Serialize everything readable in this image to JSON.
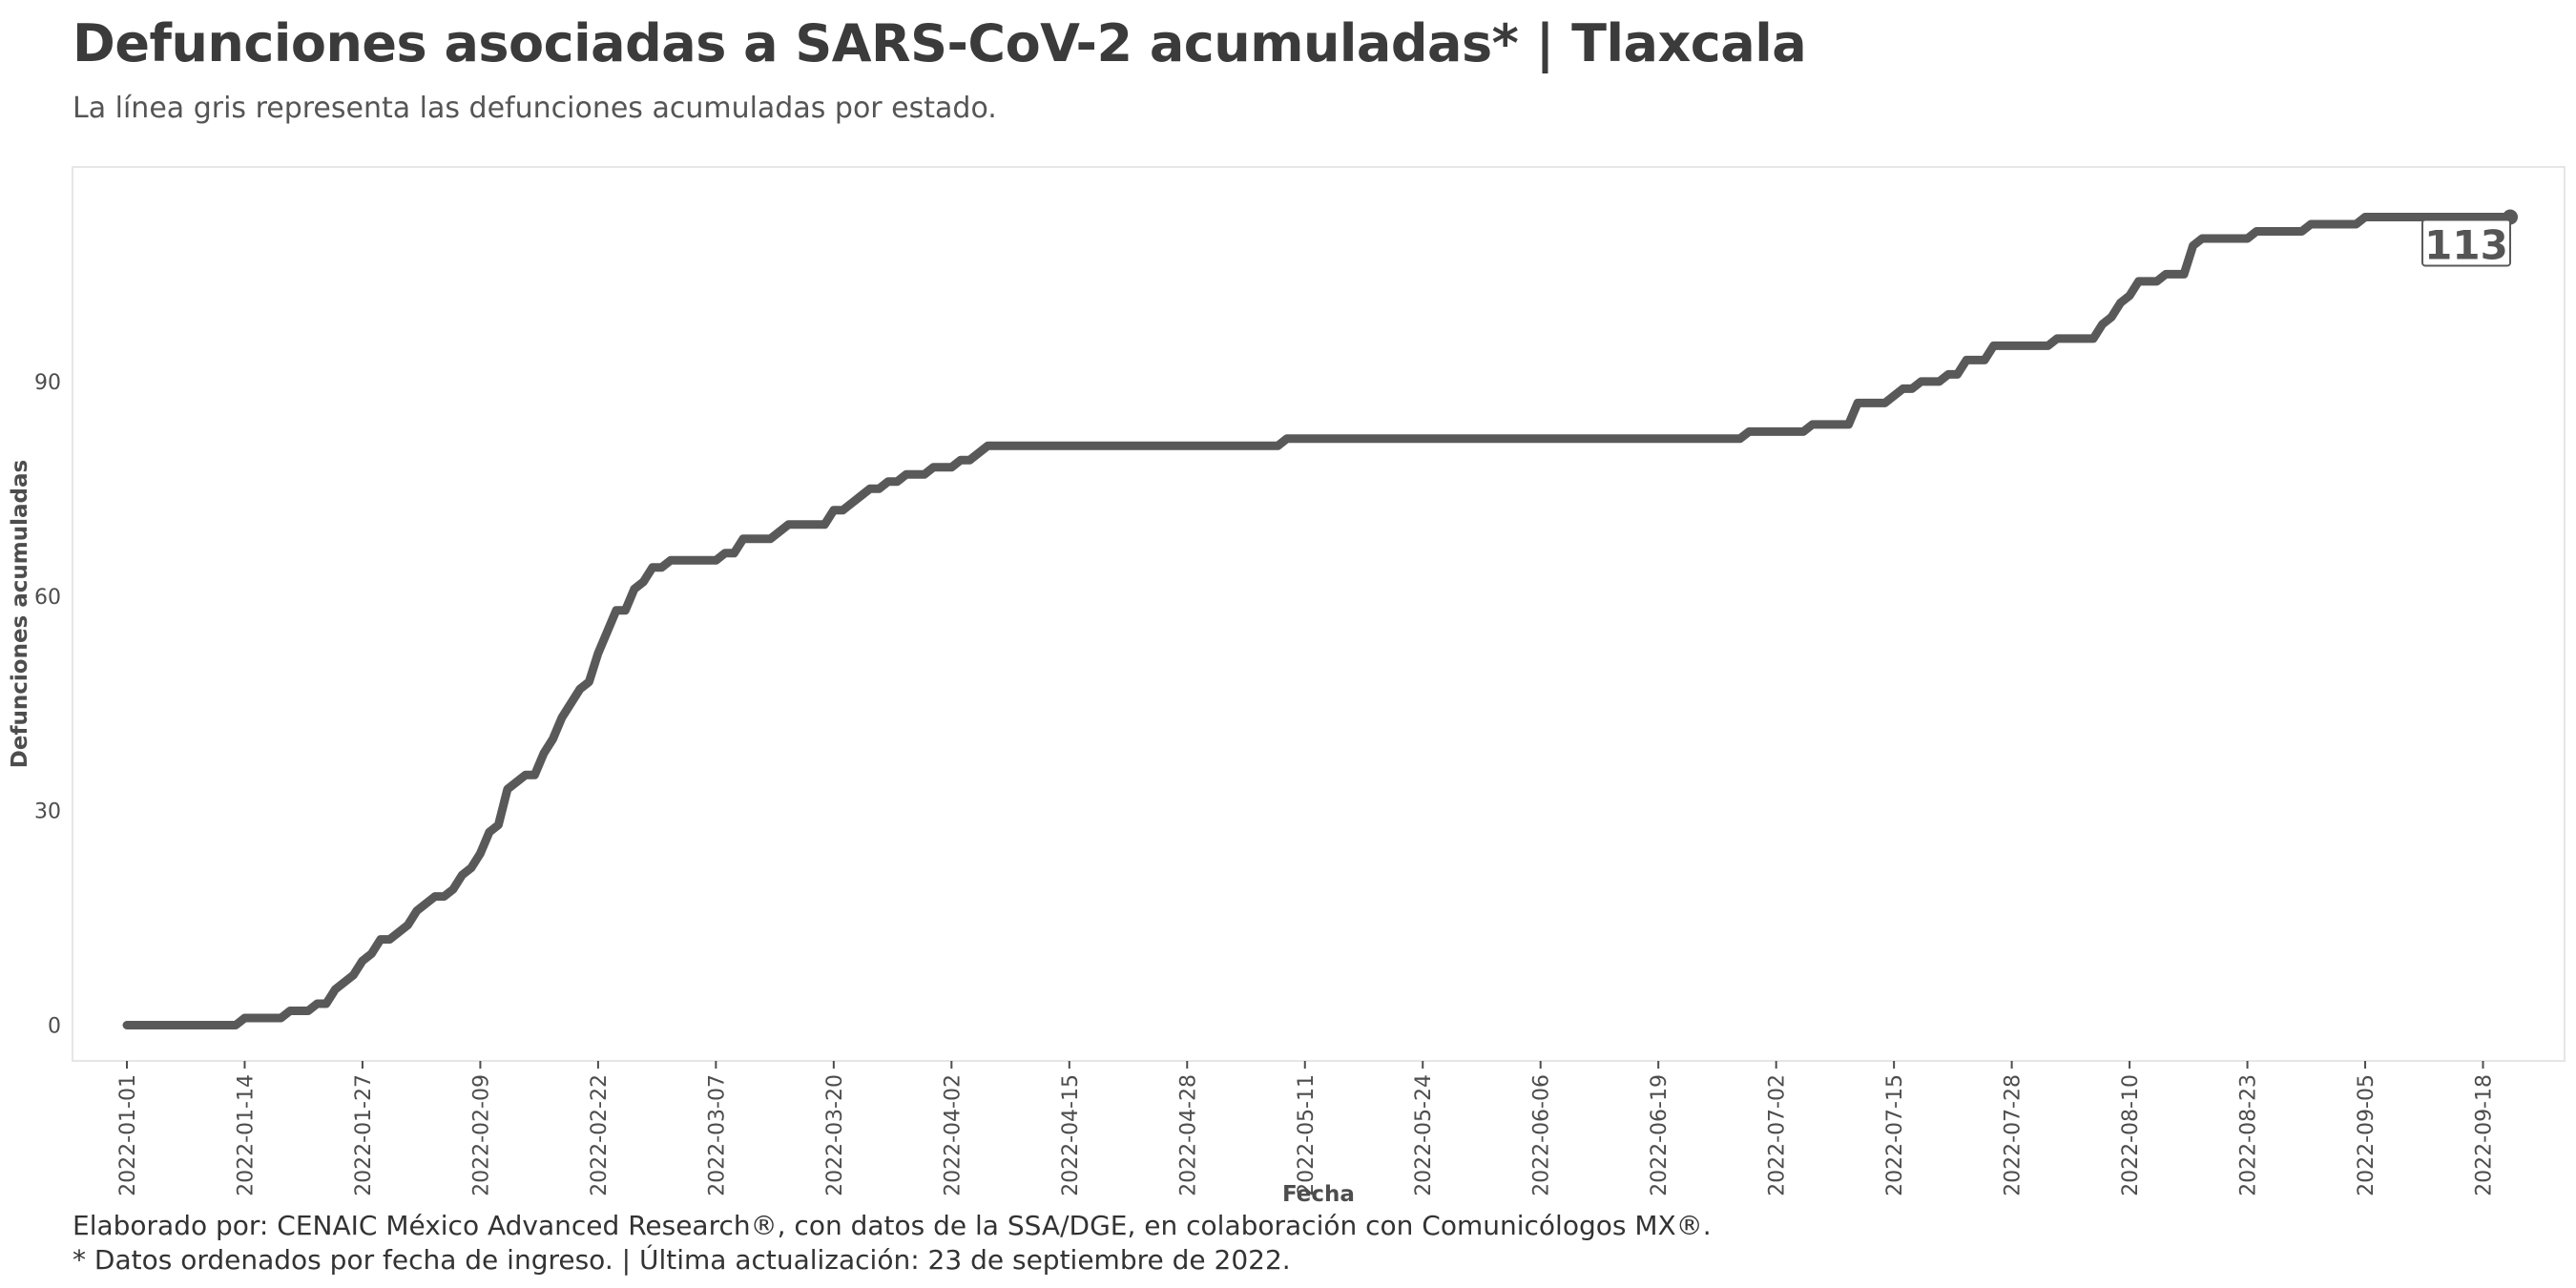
{
  "title": "Defunciones asociadas a SARS-CoV-2 acumuladas* | Tlaxcala",
  "subtitle": "La línea gris representa las defunciones acumuladas por estado.",
  "caption": {
    "line1": "Elaborado por: CENAIC México Advanced Research®, con datos de la SSA/DGE, en colaboración con Comunicólogos MX®.",
    "line2": "* Datos ordenados por fecha de ingreso. | Última actualización: 23 de septiembre de 2022."
  },
  "chart_data": {
    "type": "line",
    "xlabel": "Fecha",
    "ylabel": "Defunciones acumuladas",
    "ylim": [
      -5,
      120
    ],
    "yticks": [
      0,
      30,
      60,
      90
    ],
    "xticks": [
      "2022-01-01",
      "2022-01-14",
      "2022-01-27",
      "2022-02-09",
      "2022-02-22",
      "2022-03-07",
      "2022-03-20",
      "2022-04-02",
      "2022-04-15",
      "2022-04-28",
      "2022-05-11",
      "2022-05-24",
      "2022-06-06",
      "2022-06-19",
      "2022-07-02",
      "2022-07-15",
      "2022-07-28",
      "2022-08-10",
      "2022-08-23",
      "2022-09-05",
      "2022-09-18"
    ],
    "xlim": [
      "2021-12-26",
      "2022-09-27"
    ],
    "grid": false,
    "colors": {
      "line": "#595959",
      "border": "#e6e6e6"
    },
    "end_label": "113",
    "series": [
      {
        "points": [
          [
            "2022-01-01",
            0
          ],
          [
            "2022-01-13",
            0
          ],
          [
            "2022-01-14",
            1
          ],
          [
            "2022-01-18",
            1
          ],
          [
            "2022-01-19",
            2
          ],
          [
            "2022-01-21",
            2
          ],
          [
            "2022-01-22",
            3
          ],
          [
            "2022-01-23",
            3
          ],
          [
            "2022-01-24",
            5
          ],
          [
            "2022-01-25",
            6
          ],
          [
            "2022-01-26",
            7
          ],
          [
            "2022-01-27",
            9
          ],
          [
            "2022-01-28",
            10
          ],
          [
            "2022-01-29",
            12
          ],
          [
            "2022-01-30",
            12
          ],
          [
            "2022-01-31",
            13
          ],
          [
            "2022-02-01",
            14
          ],
          [
            "2022-02-02",
            16
          ],
          [
            "2022-02-03",
            17
          ],
          [
            "2022-02-04",
            18
          ],
          [
            "2022-02-05",
            18
          ],
          [
            "2022-02-06",
            19
          ],
          [
            "2022-02-07",
            21
          ],
          [
            "2022-02-08",
            22
          ],
          [
            "2022-02-09",
            24
          ],
          [
            "2022-02-10",
            27
          ],
          [
            "2022-02-11",
            28
          ],
          [
            "2022-02-12",
            33
          ],
          [
            "2022-02-13",
            34
          ],
          [
            "2022-02-14",
            35
          ],
          [
            "2022-02-15",
            35
          ],
          [
            "2022-02-16",
            38
          ],
          [
            "2022-02-17",
            40
          ],
          [
            "2022-02-18",
            43
          ],
          [
            "2022-02-19",
            45
          ],
          [
            "2022-02-20",
            47
          ],
          [
            "2022-02-21",
            48
          ],
          [
            "2022-02-22",
            52
          ],
          [
            "2022-02-23",
            55
          ],
          [
            "2022-02-24",
            58
          ],
          [
            "2022-02-25",
            58
          ],
          [
            "2022-02-26",
            61
          ],
          [
            "2022-02-27",
            62
          ],
          [
            "2022-02-28",
            64
          ],
          [
            "2022-03-01",
            64
          ],
          [
            "2022-03-02",
            65
          ],
          [
            "2022-03-07",
            65
          ],
          [
            "2022-03-08",
            66
          ],
          [
            "2022-03-09",
            66
          ],
          [
            "2022-03-10",
            68
          ],
          [
            "2022-03-13",
            68
          ],
          [
            "2022-03-15",
            70
          ],
          [
            "2022-03-19",
            70
          ],
          [
            "2022-03-20",
            72
          ],
          [
            "2022-03-21",
            72
          ],
          [
            "2022-03-23",
            74
          ],
          [
            "2022-03-24",
            75
          ],
          [
            "2022-03-25",
            75
          ],
          [
            "2022-03-26",
            76
          ],
          [
            "2022-03-27",
            76
          ],
          [
            "2022-03-28",
            77
          ],
          [
            "2022-03-30",
            77
          ],
          [
            "2022-03-31",
            78
          ],
          [
            "2022-04-02",
            78
          ],
          [
            "2022-04-03",
            79
          ],
          [
            "2022-04-04",
            79
          ],
          [
            "2022-04-06",
            81
          ],
          [
            "2022-05-08",
            81
          ],
          [
            "2022-05-09",
            82
          ],
          [
            "2022-06-28",
            82
          ],
          [
            "2022-06-29",
            83
          ],
          [
            "2022-07-05",
            83
          ],
          [
            "2022-07-06",
            84
          ],
          [
            "2022-07-10",
            84
          ],
          [
            "2022-07-11",
            87
          ],
          [
            "2022-07-14",
            87
          ],
          [
            "2022-07-16",
            89
          ],
          [
            "2022-07-17",
            89
          ],
          [
            "2022-07-18",
            90
          ],
          [
            "2022-07-20",
            90
          ],
          [
            "2022-07-21",
            91
          ],
          [
            "2022-07-22",
            91
          ],
          [
            "2022-07-23",
            93
          ],
          [
            "2022-07-25",
            93
          ],
          [
            "2022-07-26",
            95
          ],
          [
            "2022-08-01",
            95
          ],
          [
            "2022-08-02",
            96
          ],
          [
            "2022-08-06",
            96
          ],
          [
            "2022-08-07",
            98
          ],
          [
            "2022-08-08",
            99
          ],
          [
            "2022-08-09",
            101
          ],
          [
            "2022-08-10",
            102
          ],
          [
            "2022-08-11",
            104
          ],
          [
            "2022-08-13",
            104
          ],
          [
            "2022-08-14",
            105
          ],
          [
            "2022-08-16",
            105
          ],
          [
            "2022-08-17",
            109
          ],
          [
            "2022-08-18",
            110
          ],
          [
            "2022-08-23",
            110
          ],
          [
            "2022-08-24",
            111
          ],
          [
            "2022-08-29",
            111
          ],
          [
            "2022-08-30",
            112
          ],
          [
            "2022-09-04",
            112
          ],
          [
            "2022-09-05",
            113
          ],
          [
            "2022-09-21",
            113
          ]
        ]
      }
    ]
  }
}
